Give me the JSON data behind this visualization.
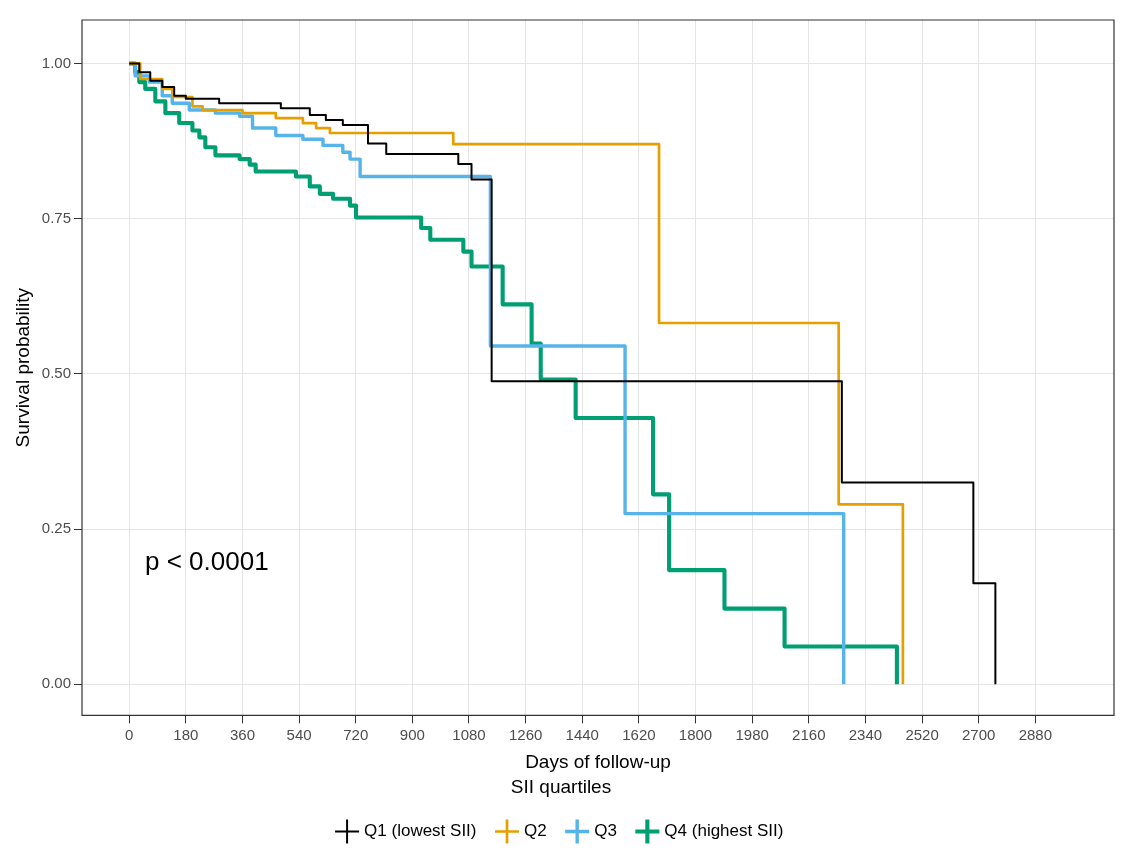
{
  "chart_data": {
    "type": "step",
    "xlabel": "Days of follow-up",
    "ylabel": "Survival probability",
    "legend_title": "SII quartiles",
    "xlim": [
      -150,
      3130
    ],
    "ylim": [
      -0.05,
      1.07
    ],
    "xticks": [
      0,
      180,
      360,
      540,
      720,
      900,
      1080,
      1260,
      1440,
      1620,
      1800,
      1980,
      2160,
      2340,
      2520,
      2700,
      2880
    ],
    "yticks": [
      {
        "value": 0,
        "label": "0.00"
      },
      {
        "value": 0.25,
        "label": "0.25"
      },
      {
        "value": 0.5,
        "label": "0.50"
      },
      {
        "value": 0.75,
        "label": "0.75"
      },
      {
        "value": 1,
        "label": "1.00"
      }
    ],
    "grid": true,
    "legend": "bottom",
    "marker": "none",
    "line_style": "solid",
    "annotations": [
      "p < 0.0001"
    ],
    "series": [
      {
        "name": "Q1 (lowest SII)",
        "color": "#000000",
        "x": [
          0,
          32,
          67,
          105,
          143,
          180,
          286,
          482,
          574,
          625,
          679,
          759,
          817,
          1046,
          1088,
          1152,
          2265,
          2683,
          2753
        ],
        "values": [
          1,
          0.986,
          0.972,
          0.962,
          0.948,
          0.943,
          0.936,
          0.928,
          0.917,
          0.909,
          0.901,
          0.871,
          0.854,
          0.838,
          0.813,
          0.488,
          0.325,
          0.163,
          0
        ]
      },
      {
        "name": "Q2",
        "color": "#e69f00",
        "x": [
          0,
          35,
          105,
          137,
          201,
          233,
          360,
          466,
          552,
          594,
          638,
          1030,
          1684,
          2255,
          2459
        ],
        "values": [
          1,
          0.975,
          0.959,
          0.946,
          0.931,
          0.925,
          0.92,
          0.912,
          0.904,
          0.896,
          0.888,
          0.87,
          0.582,
          0.29,
          0
        ]
      },
      {
        "name": "Q3",
        "color": "#56b4e9",
        "x": [
          0,
          19,
          64,
          105,
          137,
          191,
          274,
          351,
          392,
          466,
          552,
          616,
          679,
          702,
          734,
          1148,
          1576,
          2271
        ],
        "values": [
          1,
          0.98,
          0.97,
          0.948,
          0.936,
          0.925,
          0.92,
          0.915,
          0.896,
          0.884,
          0.878,
          0.868,
          0.857,
          0.846,
          0.818,
          0.545,
          0.275,
          0
        ]
      },
      {
        "name": "Q4 (highest SII)",
        "color": "#009e73",
        "x": [
          0,
          19,
          32,
          51,
          83,
          115,
          159,
          201,
          223,
          242,
          274,
          351,
          383,
          402,
          530,
          574,
          606,
          648,
          702,
          721,
          928,
          957,
          1062,
          1088,
          1187,
          1279,
          1308,
          1419,
          1665,
          1716,
          1892,
          2083,
          2440
        ],
        "values": [
          1,
          0.986,
          0.97,
          0.959,
          0.939,
          0.92,
          0.904,
          0.892,
          0.881,
          0.865,
          0.852,
          0.846,
          0.837,
          0.826,
          0.818,
          0.802,
          0.79,
          0.782,
          0.771,
          0.752,
          0.735,
          0.716,
          0.697,
          0.673,
          0.612,
          0.549,
          0.491,
          0.429,
          0.306,
          0.184,
          0.122,
          0.061,
          0
        ]
      }
    ]
  }
}
